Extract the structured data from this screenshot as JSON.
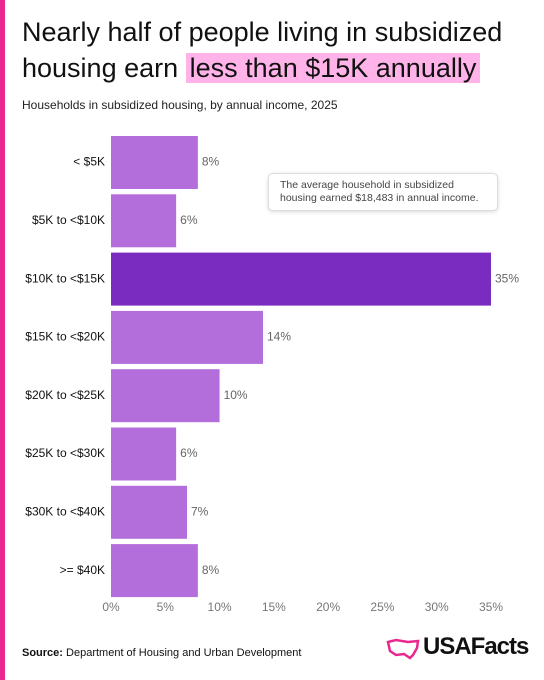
{
  "chart_data": {
    "type": "bar",
    "orientation": "horizontal",
    "title": "Nearly half of people living in subsidized housing earn",
    "title_highlight": "less than $15K annually",
    "subtitle": "Households in subsidized housing, by annual income, 2025",
    "annotation": "The average household in subsidized housing earned $18,483 in annual income.",
    "categories": [
      "< $5K",
      "$5K to <$10K",
      "$10K to <$15K",
      "$15K to <$20K",
      "$20K to <$25K",
      "$25K to <$30K",
      "$30K to <$40K",
      ">= $40K"
    ],
    "values": [
      8,
      6,
      35,
      14,
      10,
      6,
      7,
      8
    ],
    "value_labels": [
      "8%",
      "6%",
      "35%",
      "14%",
      "10%",
      "6%",
      "7%",
      "8%"
    ],
    "colors": [
      "#b46edc",
      "#b46edc",
      "#7b2cc0",
      "#b46edc",
      "#b46edc",
      "#b46edc",
      "#b46edc",
      "#b46edc"
    ],
    "xlim": [
      0,
      35
    ],
    "xticks": [
      {
        "value": 0,
        "label": "0%"
      },
      {
        "value": 5,
        "label": "5%"
      },
      {
        "value": 10,
        "label": "10%"
      },
      {
        "value": 15,
        "label": "15%"
      },
      {
        "value": 20,
        "label": "20%"
      },
      {
        "value": 25,
        "label": "25%"
      },
      {
        "value": 30,
        "label": "30%"
      },
      {
        "value": 35,
        "label": "35%"
      }
    ],
    "source_label": "Source:",
    "source": "Department of Housing and Urban Development",
    "logo": "USAFacts"
  }
}
